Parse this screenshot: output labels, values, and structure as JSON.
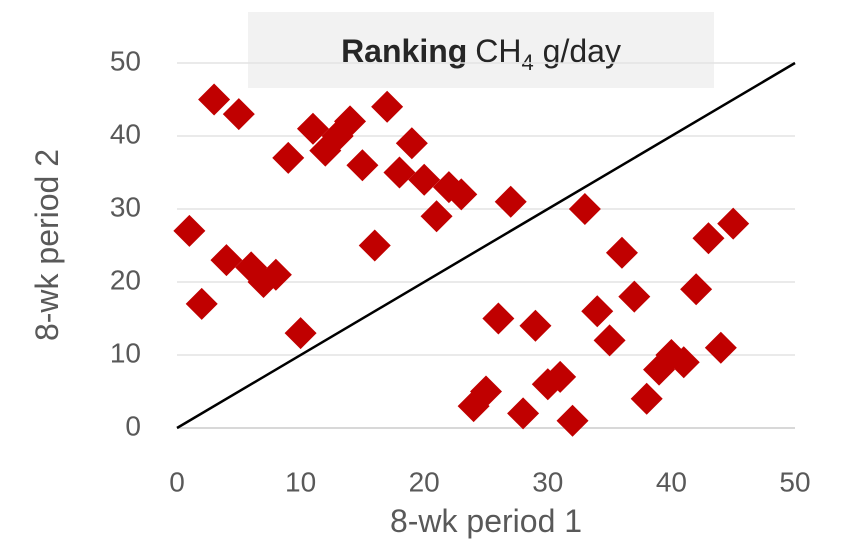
{
  "chart_data": {
    "type": "scatter",
    "title": {
      "bold": "Ranking",
      "main": "CH",
      "subscript": "4",
      "rest": " g/day"
    },
    "x_label": "8-wk period 1",
    "y_label": "8-wk period 2",
    "color": "#c00000",
    "grid": true,
    "reference_line": "y=x",
    "xlim": [
      0,
      50
    ],
    "ylim": [
      0,
      50
    ],
    "xticks": [
      0,
      10,
      20,
      30,
      40,
      50
    ],
    "yticks": [
      0,
      10,
      20,
      30,
      40,
      50
    ],
    "x": [
      1,
      2,
      3,
      5,
      4,
      6,
      7,
      8,
      9,
      10,
      11,
      12,
      13,
      14,
      15,
      16,
      17,
      18,
      19,
      20,
      21,
      22,
      23,
      27,
      24,
      25,
      26,
      28,
      29,
      30,
      31,
      32,
      33,
      34,
      35,
      36,
      37,
      38,
      39,
      40,
      41,
      42,
      43,
      44,
      45
    ],
    "y": [
      27,
      17,
      45,
      43,
      23,
      22,
      20,
      21,
      37,
      13,
      41,
      38,
      40,
      42,
      36,
      25,
      44,
      35,
      39,
      34,
      29,
      33,
      32,
      31,
      3,
      5,
      15,
      2,
      14,
      6,
      7,
      1,
      30,
      16,
      12,
      24,
      18,
      4,
      8,
      10,
      9,
      19,
      26,
      11,
      28
    ]
  }
}
